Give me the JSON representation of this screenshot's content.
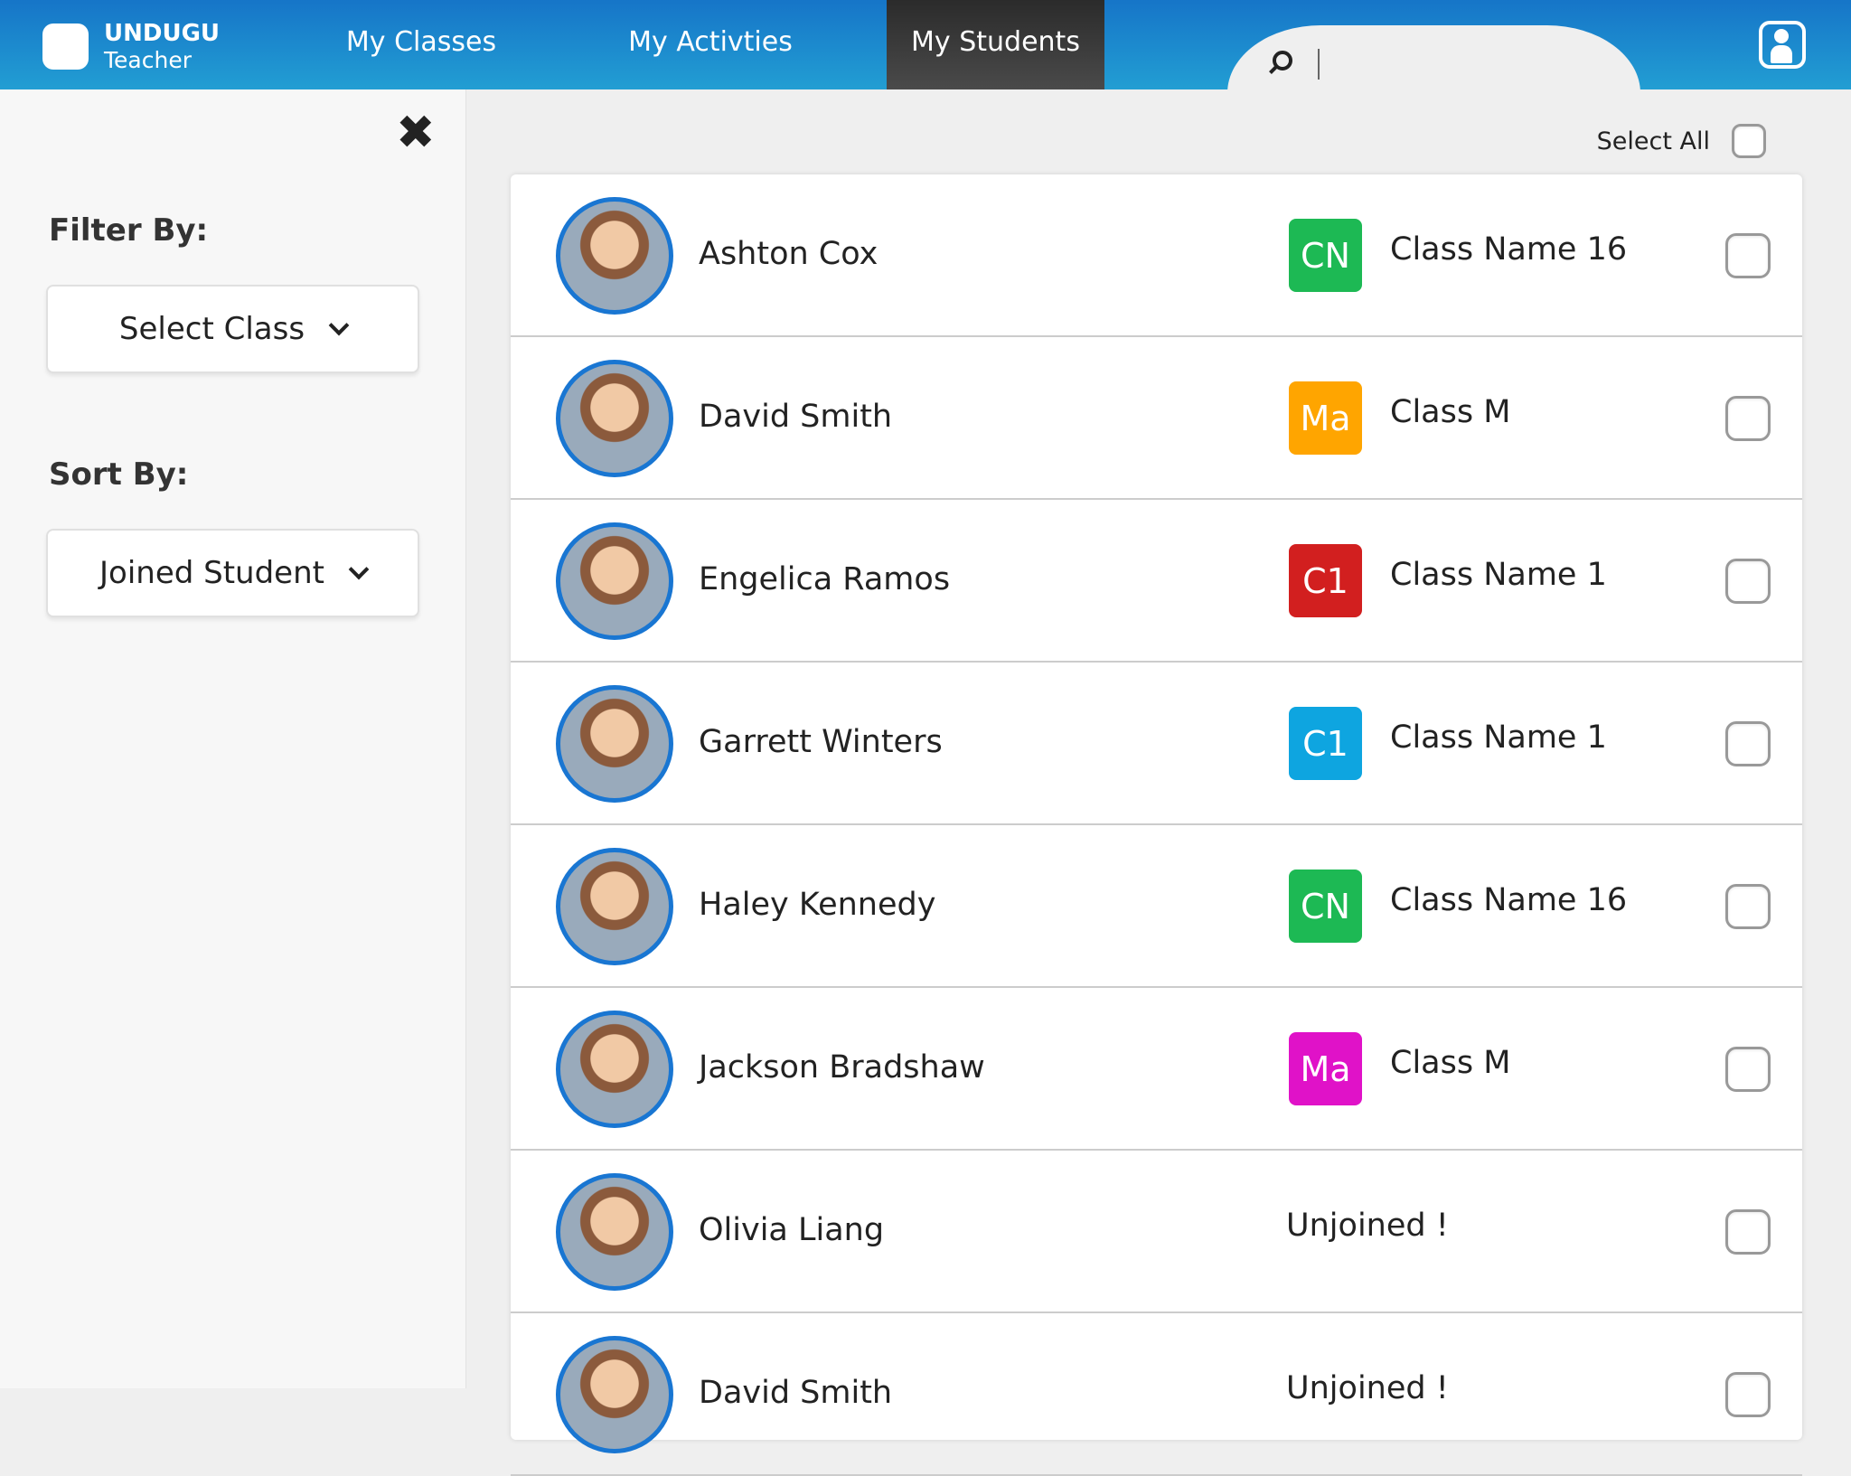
{
  "header": {
    "brand": "UNDUGU",
    "role": "Teacher",
    "tabs": [
      {
        "label": "My Classes"
      },
      {
        "label": "My Activties"
      },
      {
        "label": "My Students",
        "active": true
      }
    ],
    "search_value": ""
  },
  "sidebar": {
    "filter_label": "Filter By:",
    "filter_value": "Select Class",
    "sort_label": "Sort By:",
    "sort_value": "Joined Student"
  },
  "select_all": "Select All",
  "students": [
    {
      "name": "Ashton Cox",
      "badge": "CN",
      "badge_color": "#1db954",
      "class": "Class Name 16"
    },
    {
      "name": "David Smith",
      "badge": "Ma",
      "badge_color": "#ffa500",
      "class": "Class M"
    },
    {
      "name": "Engelica Ramos",
      "badge": "C1",
      "badge_color": "#d21f1f",
      "class": "Class Name 1"
    },
    {
      "name": "Garrett Winters",
      "badge": "C1",
      "badge_color": "#0ea5e0",
      "class": "Class Name 1"
    },
    {
      "name": "Haley Kennedy",
      "badge": "CN",
      "badge_color": "#1db954",
      "class": "Class Name 16"
    },
    {
      "name": "Jackson Bradshaw",
      "badge": "Ma",
      "badge_color": "#e012c8",
      "class": "Class M"
    },
    {
      "name": "Olivia Liang",
      "status": "Unjoined !"
    },
    {
      "name": "David Smith",
      "status": "Unjoined !"
    }
  ]
}
